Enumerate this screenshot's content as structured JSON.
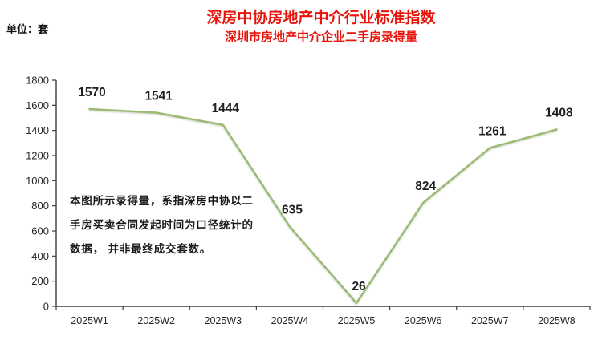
{
  "header": {
    "unit_label": "单位：套",
    "title": "深房中协房地产中介行业标准指数",
    "subtitle": "深圳市房地产中介企业二手房录得量"
  },
  "annotation": {
    "lines": [
      "本图所示录得量，系指深房中协以二",
      "手房买卖合同发起时间为口径统计的",
      "数据， 并非最终成交套数。"
    ]
  },
  "chart_data": {
    "type": "line",
    "title": "深圳市房地产中介企业二手房录得量",
    "categories": [
      "2025W1",
      "2025W2",
      "2025W3",
      "2025W4",
      "2025W5",
      "2025W6",
      "2025W7",
      "2025W8"
    ],
    "values": [
      1570,
      1541,
      1444,
      635,
      26,
      824,
      1261,
      1408
    ],
    "xlabel": "",
    "ylabel": "",
    "ylim": [
      0,
      1800
    ],
    "ytick_step": 200,
    "grid": false,
    "legend": false,
    "data_labels": true,
    "line_color": "#9cba72"
  },
  "colors": {
    "title_red": "#e8140c",
    "axis": "#3d3d3d",
    "text": "#1a1a1a"
  }
}
